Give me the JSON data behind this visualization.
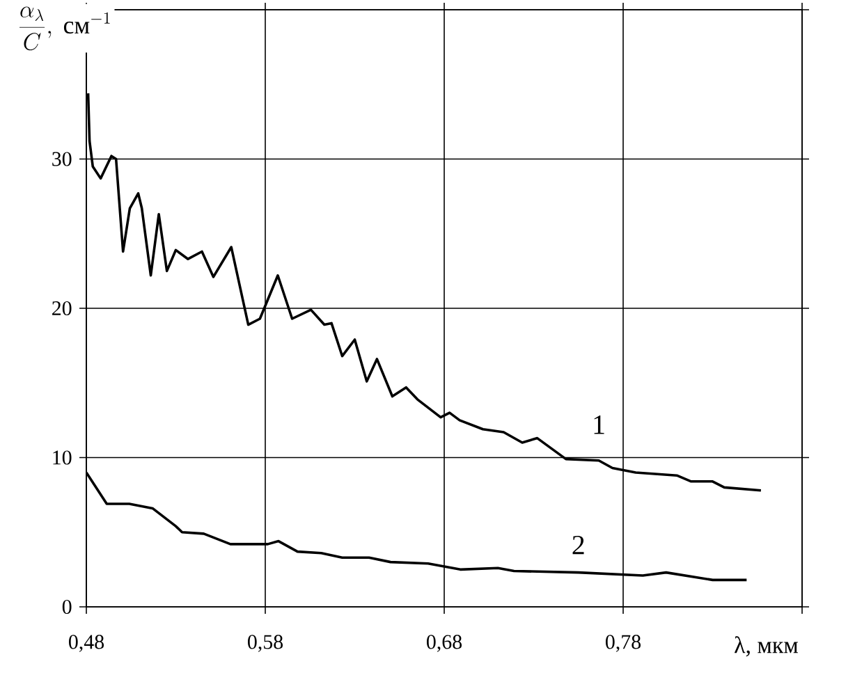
{
  "chart_data": {
    "type": "line",
    "xlabel": "λ, мкм",
    "ylabel": "\\frac{\\alpha_{\\lambda}}{C},\\ \\mbox{см}^{-1}",
    "xlim": [
      0.48,
      0.88
    ],
    "ylim": [
      0,
      40
    ],
    "xticks": [
      {
        "value": 0.48,
        "label": "0,48"
      },
      {
        "value": 0.58,
        "label": "0,58"
      },
      {
        "value": 0.68,
        "label": "0,68"
      },
      {
        "value": 0.78,
        "label": "0,78"
      },
      {
        "value": 0.88,
        "label": null
      }
    ],
    "yticks": [
      0,
      10,
      20,
      30,
      {
        "value": 40,
        "label": null
      }
    ],
    "grid": true,
    "marker": "none",
    "line_style": "solid",
    "series": [
      {
        "name": "1",
        "color": "#000000",
        "x": [
          0.481,
          0.4818,
          0.4836,
          0.488,
          0.494,
          0.4966,
          0.5005,
          0.5043,
          0.509,
          0.511,
          0.516,
          0.5205,
          0.525,
          0.53,
          0.5368,
          0.5446,
          0.551,
          0.561,
          0.5705,
          0.577,
          0.587,
          0.595,
          0.6055,
          0.613,
          0.617,
          0.623,
          0.63,
          0.6367,
          0.6424,
          0.651,
          0.6587,
          0.665,
          0.678,
          0.683,
          0.6886,
          0.7016,
          0.7132,
          0.7236,
          0.732,
          0.748,
          0.7664,
          0.774,
          0.787,
          0.81,
          0.818,
          0.83,
          0.8365,
          0.857
        ],
        "values": [
          34.4,
          31.2,
          29.5,
          28.7,
          30.2,
          30.0,
          23.8,
          26.7,
          27.7,
          26.7,
          22.2,
          26.3,
          22.5,
          23.9,
          23.3,
          23.8,
          22.1,
          24.1,
          18.9,
          19.3,
          22.2,
          19.3,
          19.9,
          18.9,
          19.0,
          16.8,
          17.9,
          15.1,
          16.6,
          14.1,
          14.7,
          13.9,
          12.7,
          13.0,
          12.5,
          11.9,
          11.7,
          11.0,
          11.3,
          9.9,
          9.8,
          9.3,
          9.0,
          8.8,
          8.4,
          8.4,
          8.0,
          7.8
        ]
      },
      {
        "name": "2",
        "color": "#000000",
        "x": [
          0.48,
          0.4914,
          0.504,
          0.517,
          0.53,
          0.5335,
          0.5456,
          0.5605,
          0.5814,
          0.5874,
          0.598,
          0.6113,
          0.623,
          0.638,
          0.65,
          0.671,
          0.689,
          0.71,
          0.719,
          0.755,
          0.791,
          0.804,
          0.83,
          0.849
        ],
        "values": [
          9.0,
          6.9,
          6.9,
          6.6,
          5.4,
          5.0,
          4.9,
          4.2,
          4.2,
          4.4,
          3.7,
          3.6,
          3.3,
          3.3,
          3.0,
          2.9,
          2.5,
          2.6,
          2.4,
          2.3,
          2.1,
          2.3,
          1.8,
          1.8
        ]
      }
    ]
  }
}
